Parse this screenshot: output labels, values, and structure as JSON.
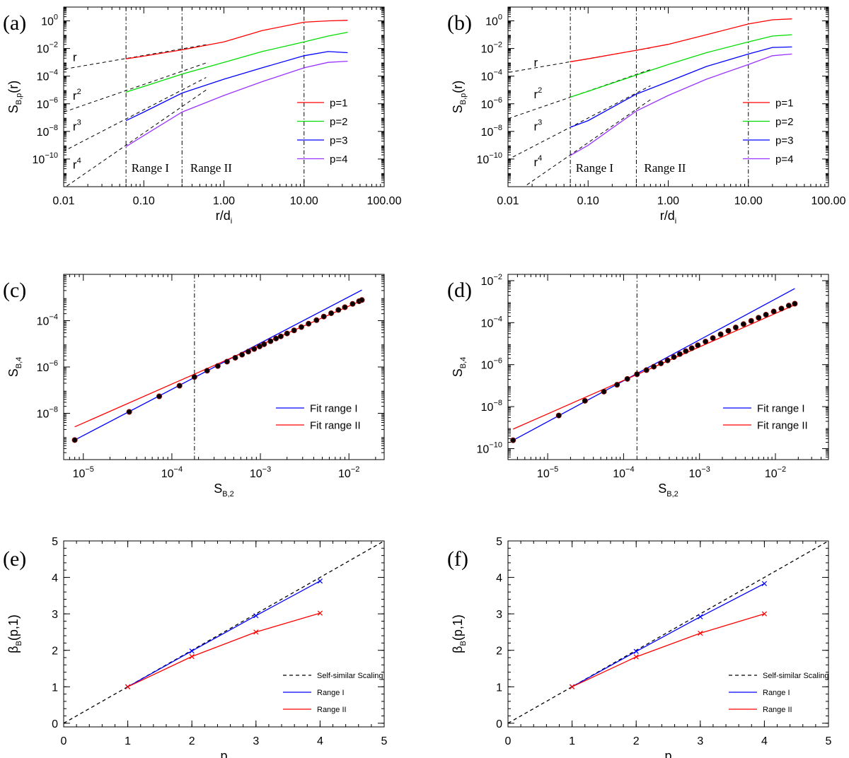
{
  "panel_labels": [
    "(a)",
    "(b)",
    "(c)",
    "(d)",
    "(e)",
    "(f)"
  ],
  "chart_data": [
    {
      "id": "a",
      "type": "line",
      "xscale": "log",
      "yscale": "log",
      "xlim": [
        0.01,
        100
      ],
      "ylim": [
        1e-12,
        10
      ],
      "xlabel": "r/d",
      "xlabel_sub": "i",
      "ylabel": "S",
      "ylabel_sub": "B,p",
      "ylabel_tail": "(r)",
      "xticks": [
        {
          "v": 0.01,
          "label": "0.01"
        },
        {
          "v": 0.1,
          "label": "0.10"
        },
        {
          "v": 1,
          "label": "1.00"
        },
        {
          "v": 10,
          "label": "10.00"
        },
        {
          "v": 100,
          "label": "100.00"
        }
      ],
      "yticks": [
        {
          "v": 1e-10,
          "base": "10",
          "exp": "−10"
        },
        {
          "v": 1e-08,
          "base": "10",
          "exp": "−8"
        },
        {
          "v": 1e-06,
          "base": "10",
          "exp": "−6"
        },
        {
          "v": 0.0001,
          "base": "10",
          "exp": "−4"
        },
        {
          "v": 0.01,
          "base": "10",
          "exp": "−2"
        },
        {
          "v": 1,
          "base": "10",
          "exp": "0"
        }
      ],
      "vlines": [
        0.06,
        0.3,
        10
      ],
      "series": [
        {
          "name": "p=1",
          "color": "#ff0000",
          "x": [
            0.06,
            0.1,
            0.3,
            1,
            3,
            10,
            20,
            35
          ],
          "y": [
            0.0018,
            0.0028,
            0.008,
            0.03,
            0.2,
            0.8,
            1.0,
            1.1
          ]
        },
        {
          "name": "p=2",
          "color": "#00dd00",
          "x": [
            0.06,
            0.1,
            0.3,
            1,
            3,
            10,
            20,
            35
          ],
          "y": [
            7e-06,
            1.8e-05,
            0.00014,
            0.001,
            0.006,
            0.03,
            0.08,
            0.15
          ]
        },
        {
          "name": "p=3",
          "color": "#0000ff",
          "x": [
            0.06,
            0.1,
            0.3,
            1,
            3,
            10,
            20,
            35
          ],
          "y": [
            6e-08,
            2.5e-07,
            6e-06,
            6e-05,
            0.0004,
            0.003,
            0.006,
            0.005
          ]
        },
        {
          "name": "p=4",
          "color": "#9933ff",
          "x": [
            0.06,
            0.1,
            0.3,
            1,
            3,
            10,
            20,
            35
          ],
          "y": [
            8e-10,
            5e-09,
            2.5e-07,
            4e-06,
            4e-05,
            0.0004,
            0.001,
            0.0012
          ]
        }
      ],
      "fits": [
        {
          "x": [
            0.006,
            0.6
          ],
          "y": [
            0.00019,
            0.019
          ],
          "label": "r",
          "exp": "",
          "lx": 0.013,
          "ly": 0.0012
        },
        {
          "x": [
            0.006,
            0.6
          ],
          "y": [
            9e-08,
            0.0009
          ],
          "label": "r",
          "exp": "2",
          "lx": 0.013,
          "ly": 2e-06
        },
        {
          "x": [
            0.006,
            0.6
          ],
          "y": [
            8e-11,
            8e-05
          ],
          "label": "r",
          "exp": "3",
          "lx": 0.013,
          "ly": 1.2e-08
        },
        {
          "x": [
            0.006,
            0.6
          ],
          "y": [
            1e-13,
            1e-05
          ],
          "label": "r",
          "exp": "4",
          "lx": 0.013,
          "ly": 2e-11
        }
      ],
      "texts": [
        {
          "text": "Range I",
          "x": 0.07,
          "y": 1.2e-11
        },
        {
          "text": "Range II",
          "x": 0.38,
          "y": 1.2e-11
        }
      ],
      "legend": {
        "position": "right-middle",
        "entries": [
          "p=1",
          "p=2",
          "p=3",
          "p=4"
        ]
      }
    },
    {
      "id": "b",
      "type": "line",
      "xscale": "log",
      "yscale": "log",
      "xlim": [
        0.01,
        100
      ],
      "ylim": [
        1e-12,
        10
      ],
      "xlabel": "r/d",
      "xlabel_sub": "i",
      "ylabel": "S",
      "ylabel_sub": "B,p",
      "ylabel_tail": "(r)",
      "xticks": [
        {
          "v": 0.01,
          "label": "0.01"
        },
        {
          "v": 0.1,
          "label": "0.10"
        },
        {
          "v": 1,
          "label": "1.00"
        },
        {
          "v": 10,
          "label": "10.00"
        },
        {
          "v": 100,
          "label": "100.00"
        }
      ],
      "yticks": [
        {
          "v": 1e-10,
          "base": "10",
          "exp": "−10"
        },
        {
          "v": 1e-08,
          "base": "10",
          "exp": "−8"
        },
        {
          "v": 1e-06,
          "base": "10",
          "exp": "−6"
        },
        {
          "v": 0.0001,
          "base": "10",
          "exp": "−4"
        },
        {
          "v": 0.01,
          "base": "10",
          "exp": "−2"
        },
        {
          "v": 1,
          "base": "10",
          "exp": "0"
        }
      ],
      "vlines": [
        0.06,
        0.4,
        10
      ],
      "series": [
        {
          "name": "p=1",
          "color": "#ff0000",
          "x": [
            0.06,
            0.1,
            0.4,
            1,
            3,
            10,
            20,
            35
          ],
          "y": [
            0.0011,
            0.0018,
            0.0075,
            0.02,
            0.1,
            0.6,
            1.2,
            1.4
          ]
        },
        {
          "name": "p=2",
          "color": "#00dd00",
          "x": [
            0.06,
            0.1,
            0.4,
            1,
            3,
            10,
            20,
            35
          ],
          "y": [
            3e-06,
            8e-06,
            0.00012,
            0.0007,
            0.005,
            0.03,
            0.08,
            0.1
          ]
        },
        {
          "name": "p=3",
          "color": "#0000ff",
          "x": [
            0.06,
            0.1,
            0.4,
            1,
            3,
            10,
            20,
            35
          ],
          "y": [
            2e-08,
            6e-08,
            5e-06,
            4e-05,
            0.0005,
            0.004,
            0.012,
            0.013
          ]
        },
        {
          "name": "p=4",
          "color": "#9933ff",
          "x": [
            0.06,
            0.1,
            0.4,
            1,
            3,
            10,
            20,
            35
          ],
          "y": [
            1.8e-10,
            1e-09,
            3e-07,
            4e-06,
            6e-05,
            0.0007,
            0.003,
            0.004
          ]
        }
      ],
      "fits": [
        {
          "x": [
            0.006,
            0.6
          ],
          "y": [
            0.00011,
            0.011
          ],
          "label": "r",
          "exp": "",
          "lx": 0.021,
          "ly": 0.0005
        },
        {
          "x": [
            0.006,
            0.6
          ],
          "y": [
            3e-08,
            0.0003
          ],
          "label": "r",
          "exp": "2",
          "lx": 0.021,
          "ly": 2.5e-06
        },
        {
          "x": [
            0.006,
            0.6
          ],
          "y": [
            2e-11,
            2e-05
          ],
          "label": "r",
          "exp": "3",
          "lx": 0.021,
          "ly": 1.2e-08
        },
        {
          "x": [
            0.006,
            0.6
          ],
          "y": [
            2e-14,
            2e-06
          ],
          "label": "r",
          "exp": "4",
          "lx": 0.021,
          "ly": 3e-11
        }
      ],
      "texts": [
        {
          "text": "Range I",
          "x": 0.07,
          "y": 1.2e-11
        },
        {
          "text": "Range II",
          "x": 0.5,
          "y": 1.2e-11
        }
      ],
      "legend": {
        "position": "right-middle",
        "entries": [
          "p=1",
          "p=2",
          "p=3",
          "p=4"
        ]
      }
    },
    {
      "id": "c",
      "type": "scatter",
      "xscale": "log",
      "yscale": "log",
      "xlim": [
        6e-06,
        0.025
      ],
      "ylim": [
        1e-10,
        0.01
      ],
      "xlabel": "S",
      "xlabel_sub": "B,2",
      "ylabel": "S",
      "ylabel_sub": "B,4",
      "ylabel_tail": "",
      "xticks": [
        {
          "v": 1e-05,
          "base": "10",
          "exp": "−5"
        },
        {
          "v": 0.0001,
          "base": "10",
          "exp": "−4"
        },
        {
          "v": 0.001,
          "base": "10",
          "exp": "−3"
        },
        {
          "v": 0.01,
          "base": "10",
          "exp": "−2"
        }
      ],
      "yticks": [
        {
          "v": 1e-08,
          "base": "10",
          "exp": "−8"
        },
        {
          "v": 1e-06,
          "base": "10",
          "exp": "−6"
        },
        {
          "v": 0.0001,
          "base": "10",
          "exp": "−4"
        }
      ],
      "vlines": [
        0.00018
      ],
      "points": {
        "x": [
          8e-06,
          3.3e-05,
          7.2e-05,
          0.000122,
          0.00018,
          0.00025,
          0.00033,
          0.00042,
          0.00052,
          0.00062,
          0.00073,
          0.00085,
          0.00098,
          0.0011,
          0.0013,
          0.0015,
          0.0017,
          0.002,
          0.0024,
          0.0029,
          0.0035,
          0.0043,
          0.0052,
          0.0063,
          0.0076,
          0.009,
          0.011,
          0.013,
          0.014
        ],
        "y": [
          7e-10,
          1.15e-08,
          5.4e-08,
          1.55e-07,
          3.7e-07,
          6.9e-07,
          1.1e-06,
          1.7e-06,
          2.5e-06,
          3.4e-06,
          4.6e-06,
          6e-06,
          7.7e-06,
          9.6e-06,
          1.3e-05,
          1.7e-05,
          2.1e-05,
          2.8e-05,
          3.8e-05,
          5.3e-05,
          7.4e-05,
          0.000105,
          0.00015,
          0.00021,
          0.00029,
          0.00038,
          0.00053,
          0.00069,
          0.00078
        ]
      },
      "fit_lines": [
        {
          "name": "Fit range I",
          "color": "#0000ff",
          "x": [
            8e-06,
            0.014
          ],
          "y": [
            7e-10,
            0.0021
          ]
        },
        {
          "name": "Fit range II",
          "color": "#ff0000",
          "x": [
            8e-06,
            0.014
          ],
          "y": [
            2.6e-09,
            0.00075
          ]
        }
      ],
      "legend": {
        "position": "right-bottom",
        "entries": [
          "Fit range I",
          "Fit range II"
        ]
      }
    },
    {
      "id": "d",
      "type": "scatter",
      "xscale": "log",
      "yscale": "log",
      "xlim": [
        3e-06,
        0.05
      ],
      "ylim": [
        3e-11,
        0.02
      ],
      "xlabel": "S",
      "xlabel_sub": "B,2",
      "ylabel": "S",
      "ylabel_sub": "B,4",
      "ylabel_tail": "",
      "xticks": [
        {
          "v": 1e-05,
          "base": "10",
          "exp": "−5"
        },
        {
          "v": 0.0001,
          "base": "10",
          "exp": "−4"
        },
        {
          "v": 0.001,
          "base": "10",
          "exp": "−3"
        },
        {
          "v": 0.01,
          "base": "10",
          "exp": "−2"
        }
      ],
      "yticks": [
        {
          "v": 1e-10,
          "base": "10",
          "exp": "−10"
        },
        {
          "v": 1e-08,
          "base": "10",
          "exp": "−8"
        },
        {
          "v": 1e-06,
          "base": "10",
          "exp": "−6"
        },
        {
          "v": 0.0001,
          "base": "10",
          "exp": "−4"
        },
        {
          "v": 0.01,
          "base": "10",
          "exp": "−2"
        }
      ],
      "vlines": [
        0.00015
      ],
      "points": {
        "x": [
          3.5e-06,
          1.4e-05,
          3.1e-05,
          5.5e-05,
          8.2e-05,
          0.000112,
          0.00015,
          0.0002,
          0.00025,
          0.00031,
          0.00038,
          0.00046,
          0.00055,
          0.00066,
          0.00079,
          0.00095,
          0.0012,
          0.0015,
          0.0019,
          0.0024,
          0.003,
          0.0038,
          0.0048,
          0.006,
          0.0075,
          0.0095,
          0.012,
          0.015,
          0.018
        ],
        "y": [
          2.5e-10,
          3.8e-09,
          1.9e-08,
          5.2e-08,
          1.1e-07,
          2.1e-07,
          3.5e-07,
          5.5e-07,
          8e-07,
          1.15e-06,
          1.6e-06,
          2.3e-06,
          3.2e-06,
          4.4e-06,
          6.1e-06,
          8.4e-06,
          1.25e-05,
          1.85e-05,
          2.8e-05,
          4.1e-05,
          5.9e-05,
          8.5e-05,
          0.000122,
          0.000172,
          0.00024,
          0.00034,
          0.00047,
          0.00065,
          0.0008
        ]
      },
      "fit_lines": [
        {
          "name": "Fit range I",
          "color": "#0000ff",
          "x": [
            3.5e-06,
            0.018
          ],
          "y": [
            2.5e-10,
            0.0042
          ]
        },
        {
          "name": "Fit range II",
          "color": "#ff0000",
          "x": [
            3.5e-06,
            0.018
          ],
          "y": [
            8.5e-10,
            0.0007
          ]
        }
      ],
      "legend": {
        "position": "right-bottom",
        "entries": [
          "Fit range I",
          "Fit range II"
        ]
      }
    },
    {
      "id": "e",
      "type": "line",
      "xscale": "linear",
      "yscale": "linear",
      "xlim": [
        0,
        5
      ],
      "ylim": [
        -0.1,
        5
      ],
      "xlabel": "p",
      "xlabel_sub": "",
      "ylabel": "β",
      "ylabel_sub": "B",
      "ylabel_tail": "(p,1)",
      "xticks": [
        {
          "v": 0,
          "label": "0"
        },
        {
          "v": 1,
          "label": "1"
        },
        {
          "v": 2,
          "label": "2"
        },
        {
          "v": 3,
          "label": "3"
        },
        {
          "v": 4,
          "label": "4"
        },
        {
          "v": 5,
          "label": "5"
        }
      ],
      "yticks": [
        {
          "v": 0,
          "label": "0"
        },
        {
          "v": 1,
          "label": "1"
        },
        {
          "v": 2,
          "label": "2"
        },
        {
          "v": 3,
          "label": "3"
        },
        {
          "v": 4,
          "label": "4"
        },
        {
          "v": 5,
          "label": "5"
        }
      ],
      "series": [
        {
          "name": "Self-similar Scaling",
          "color": "#000000",
          "dashed": true,
          "x": [
            0,
            5
          ],
          "y": [
            0,
            5
          ]
        },
        {
          "name": "Range I",
          "color": "#0000ff",
          "markers": true,
          "x": [
            1,
            2,
            3,
            4
          ],
          "y": [
            1.0,
            1.98,
            2.95,
            3.9
          ]
        },
        {
          "name": "Range II",
          "color": "#ff0000",
          "markers": true,
          "x": [
            1,
            2,
            3,
            4
          ],
          "y": [
            1.0,
            1.83,
            2.5,
            3.02
          ]
        }
      ],
      "legend": {
        "position": "right-bottom",
        "entries": [
          "Self-similar Scaling",
          "Range I",
          "Range II"
        ]
      }
    },
    {
      "id": "f",
      "type": "line",
      "xscale": "linear",
      "yscale": "linear",
      "xlim": [
        0,
        5
      ],
      "ylim": [
        -0.1,
        5
      ],
      "xlabel": "p",
      "xlabel_sub": "",
      "ylabel": "β",
      "ylabel_sub": "B",
      "ylabel_tail": "(p,1)",
      "xticks": [
        {
          "v": 0,
          "label": "0"
        },
        {
          "v": 1,
          "label": "1"
        },
        {
          "v": 2,
          "label": "2"
        },
        {
          "v": 3,
          "label": "3"
        },
        {
          "v": 4,
          "label": "4"
        },
        {
          "v": 5,
          "label": "5"
        }
      ],
      "yticks": [
        {
          "v": 0,
          "label": "0"
        },
        {
          "v": 1,
          "label": "1"
        },
        {
          "v": 2,
          "label": "2"
        },
        {
          "v": 3,
          "label": "3"
        },
        {
          "v": 4,
          "label": "4"
        },
        {
          "v": 5,
          "label": "5"
        }
      ],
      "series": [
        {
          "name": "Self-similar Scaling",
          "color": "#000000",
          "dashed": true,
          "x": [
            0,
            5
          ],
          "y": [
            0,
            5
          ]
        },
        {
          "name": "Range I",
          "color": "#0000ff",
          "markers": true,
          "x": [
            1,
            2,
            3,
            4
          ],
          "y": [
            1.0,
            1.97,
            2.92,
            3.83
          ]
        },
        {
          "name": "Range II",
          "color": "#ff0000",
          "markers": true,
          "x": [
            1,
            2,
            3,
            4
          ],
          "y": [
            1.0,
            1.82,
            2.47,
            3.0
          ]
        }
      ],
      "legend": {
        "position": "right-bottom",
        "entries": [
          "Self-similar Scaling",
          "Range I",
          "Range II"
        ]
      }
    }
  ]
}
